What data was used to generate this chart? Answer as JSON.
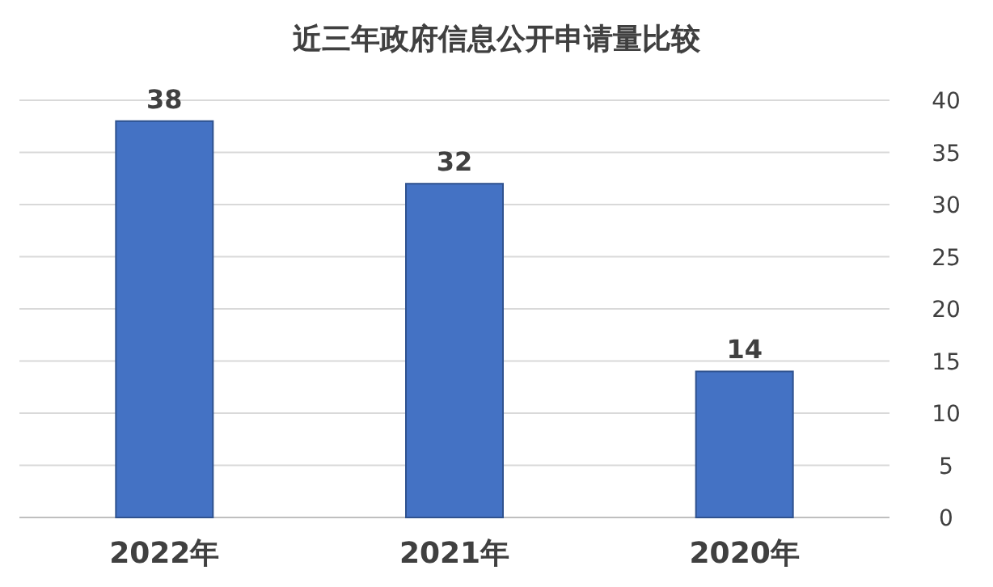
{
  "chart_data": {
    "type": "bar",
    "title": "近三年政府信息公开申请量比较",
    "categories": [
      "2022年",
      "2021年",
      "2020年"
    ],
    "values": [
      38,
      32,
      14
    ],
    "color": "#4472c4",
    "ylim": [
      0,
      40
    ],
    "yticks": [
      0,
      5,
      10,
      15,
      20,
      25,
      30,
      35,
      40
    ],
    "grid": "y",
    "data_labels": true
  }
}
